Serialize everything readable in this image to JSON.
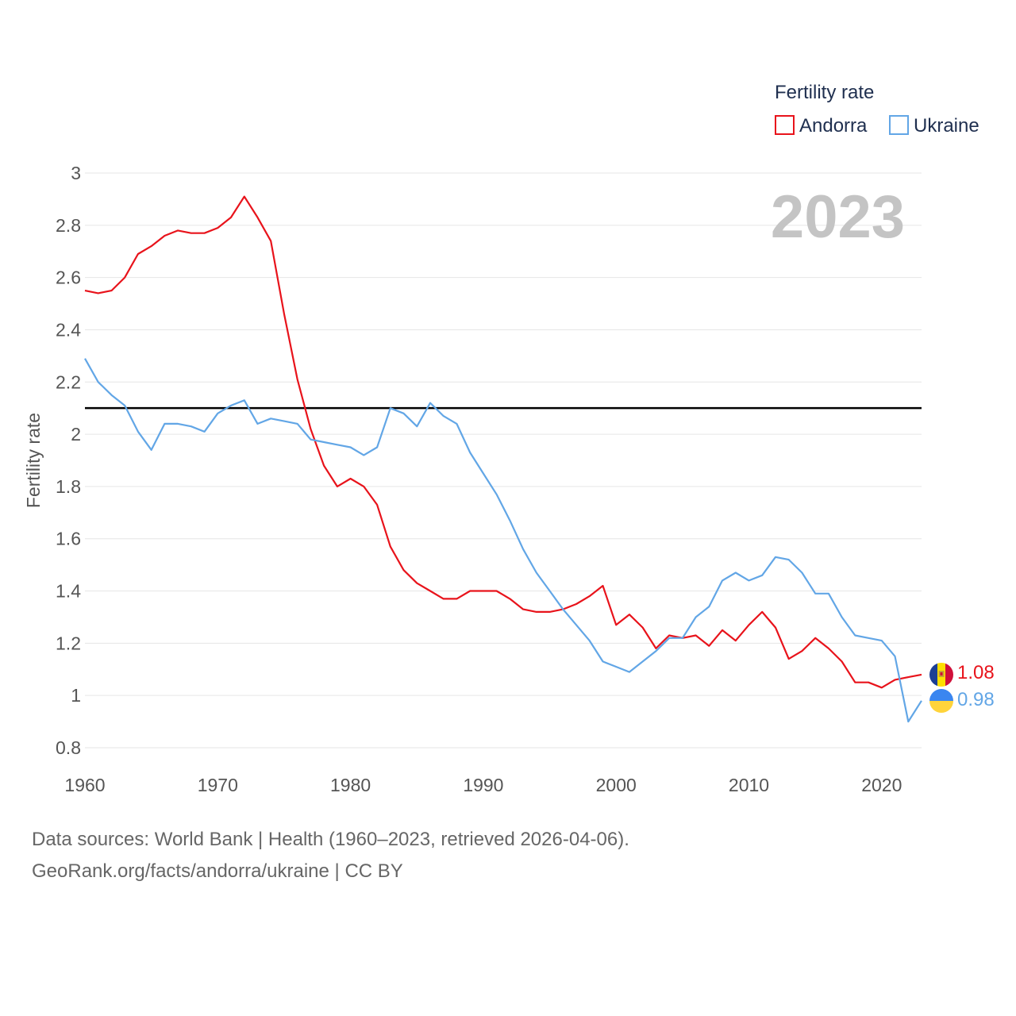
{
  "chart_data": {
    "type": "line",
    "title": "Fertility rate",
    "year_display": "2023",
    "ylabel": "Fertility rate",
    "xlabel": "",
    "xlim": [
      1960,
      2023
    ],
    "ylim": [
      0.8,
      3.0
    ],
    "x_ticks": [
      1960,
      1970,
      1980,
      1990,
      2000,
      2010,
      2020
    ],
    "y_ticks": [
      {
        "value": 0.8,
        "label": "0.8"
      },
      {
        "value": 1.0,
        "label": "1"
      },
      {
        "value": 1.2,
        "label": "1.2"
      },
      {
        "value": 1.4,
        "label": "1.4"
      },
      {
        "value": 1.6,
        "label": "1.6"
      },
      {
        "value": 1.8,
        "label": "1.8"
      },
      {
        "value": 2.0,
        "label": "2"
      },
      {
        "value": 2.2,
        "label": "2.2"
      },
      {
        "value": 2.4,
        "label": "2.4"
      },
      {
        "value": 2.6,
        "label": "2.6"
      },
      {
        "value": 2.8,
        "label": "2.8"
      },
      {
        "value": 3.0,
        "label": "3"
      }
    ],
    "grid": true,
    "reference_line": {
      "value": 2.1,
      "color": "#000000"
    },
    "legend": {
      "title": "Fertility rate",
      "position": "top-right"
    },
    "years_start": 1960,
    "series": [
      {
        "name": "Andorra",
        "color": "#e8131b",
        "end_label": "1.08",
        "flag": "andorra-flag",
        "values": [
          2.55,
          2.54,
          2.55,
          2.6,
          2.69,
          2.72,
          2.76,
          2.78,
          2.77,
          2.77,
          2.79,
          2.83,
          2.91,
          2.83,
          2.74,
          2.46,
          2.21,
          2.02,
          1.88,
          1.8,
          1.83,
          1.8,
          1.73,
          1.57,
          1.48,
          1.43,
          1.4,
          1.37,
          1.37,
          1.4,
          1.4,
          1.4,
          1.37,
          1.33,
          1.32,
          1.32,
          1.33,
          1.35,
          1.38,
          1.42,
          1.27,
          1.31,
          1.26,
          1.18,
          1.23,
          1.22,
          1.23,
          1.19,
          1.25,
          1.21,
          1.27,
          1.32,
          1.26,
          1.14,
          1.17,
          1.22,
          1.18,
          1.13,
          1.05,
          1.05,
          1.03,
          1.06,
          1.07,
          1.08
        ]
      },
      {
        "name": "Ukraine",
        "color": "#62a6e6",
        "end_label": "0.98",
        "flag": "ukraine-flag",
        "values": [
          2.29,
          2.2,
          2.15,
          2.11,
          2.01,
          1.94,
          2.04,
          2.04,
          2.03,
          2.01,
          2.08,
          2.11,
          2.13,
          2.04,
          2.06,
          2.05,
          2.04,
          1.98,
          1.97,
          1.96,
          1.95,
          1.92,
          1.95,
          2.1,
          2.08,
          2.03,
          2.12,
          2.07,
          2.04,
          1.93,
          1.85,
          1.77,
          1.67,
          1.56,
          1.47,
          1.4,
          1.33,
          1.27,
          1.21,
          1.13,
          1.11,
          1.09,
          1.13,
          1.17,
          1.22,
          1.22,
          1.3,
          1.34,
          1.44,
          1.47,
          1.44,
          1.46,
          1.53,
          1.52,
          1.47,
          1.39,
          1.39,
          1.3,
          1.23,
          1.22,
          1.21,
          1.15,
          0.9,
          0.98
        ]
      }
    ]
  },
  "footer": {
    "line1": "Data sources: World Bank | Health (1960–2023, retrieved 2026-04-06).",
    "line2": "GeoRank.org/facts/andorra/ukraine | CC BY"
  }
}
